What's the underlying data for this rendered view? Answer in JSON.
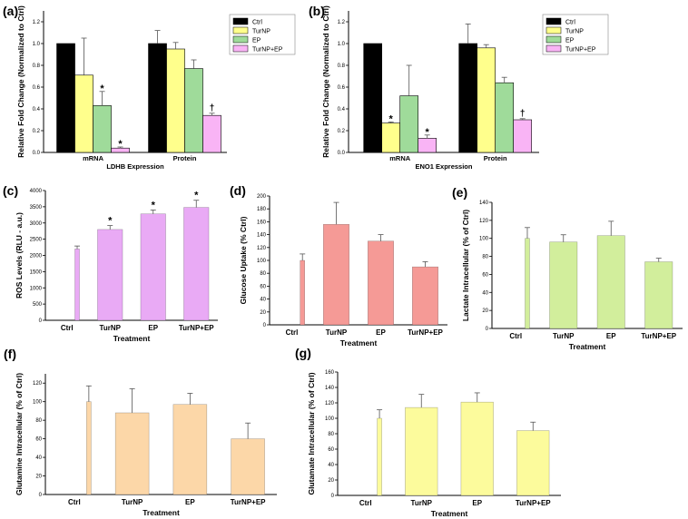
{
  "chart_data": [
    {
      "panel": "(a)",
      "type": "bar",
      "xlabel": "LDHB Expression",
      "ylabel": "Relative Fold Change (Normalized to Ctrl)",
      "ylim": [
        0,
        1.3
      ],
      "yticks": [
        "0.0",
        "0.2",
        "0.4",
        "0.6",
        "0.8",
        "1.0",
        "1.2"
      ],
      "categories": [
        "mRNA",
        "Protein"
      ],
      "legend": [
        "Ctrl",
        "TurNP",
        "EP",
        "TurNP+EP"
      ],
      "series": [
        {
          "name": "Ctrl",
          "color": "#000000",
          "values": [
            1.0,
            1.0
          ],
          "errors": [
            0,
            0.12
          ],
          "marks": [
            "",
            ""
          ]
        },
        {
          "name": "TurNP",
          "color": "#ffff8c",
          "values": [
            0.71,
            0.95
          ],
          "errors": [
            0.34,
            0.06
          ],
          "marks": [
            "",
            ""
          ]
        },
        {
          "name": "EP",
          "color": "#9fdb9a",
          "values": [
            0.43,
            0.77
          ],
          "errors": [
            0.13,
            0.08
          ],
          "marks": [
            "*",
            ""
          ]
        },
        {
          "name": "TurNP+EP",
          "color": "#f9b4f5",
          "values": [
            0.04,
            0.34
          ],
          "errors": [
            0.01,
            0.02
          ],
          "marks": [
            "*",
            "†"
          ]
        }
      ]
    },
    {
      "panel": "(b)",
      "type": "bar",
      "xlabel": "ENO1 Expression",
      "ylabel": "Relative Fold Change (Normalized to Ctrl)",
      "ylim": [
        0,
        1.3
      ],
      "yticks": [
        "0.0",
        "0.2",
        "0.4",
        "0.6",
        "0.8",
        "1.0",
        "1.2"
      ],
      "categories": [
        "mRNA",
        "Protein"
      ],
      "legend": [
        "Ctrl",
        "TurNP",
        "EP",
        "TurNP+EP"
      ],
      "series": [
        {
          "name": "Ctrl",
          "color": "#000000",
          "values": [
            1.0,
            1.0
          ],
          "errors": [
            0,
            0.18
          ],
          "marks": [
            "",
            ""
          ]
        },
        {
          "name": "TurNP",
          "color": "#ffff8c",
          "values": [
            0.27,
            0.96
          ],
          "errors": [
            0.01,
            0.03
          ],
          "marks": [
            "*",
            ""
          ]
        },
        {
          "name": "EP",
          "color": "#9fdb9a",
          "values": [
            0.52,
            0.64
          ],
          "errors": [
            0.28,
            0.05
          ],
          "marks": [
            "",
            ""
          ]
        },
        {
          "name": "TurNP+EP",
          "color": "#f9b4f5",
          "values": [
            0.13,
            0.3
          ],
          "errors": [
            0.03,
            0.01
          ],
          "marks": [
            "*",
            "†"
          ]
        }
      ]
    },
    {
      "panel": "(c)",
      "type": "bar",
      "xlabel": "Treatment",
      "ylabel": "ROS Levels (RLU - a.u.)",
      "ylim": [
        0,
        4000
      ],
      "yticks": [
        "0",
        "500",
        "1000",
        "1500",
        "2000",
        "2500",
        "3000",
        "3500",
        "4000"
      ],
      "categories": [
        "Ctrl",
        "TurNP",
        "EP",
        "TurNP+EP"
      ],
      "color": "#e9aaf5",
      "values": [
        2200,
        2800,
        3280,
        3480
      ],
      "errors": [
        90,
        120,
        120,
        220
      ],
      "marks": [
        "",
        "*",
        "*",
        "*"
      ]
    },
    {
      "panel": "(d)",
      "type": "bar",
      "xlabel": "Treatment",
      "ylabel": "Glucose Uptake (% Ctrl)",
      "ylim": [
        0,
        200
      ],
      "yticks": [
        "0",
        "20",
        "40",
        "60",
        "80",
        "100",
        "120",
        "140",
        "160",
        "180",
        "200"
      ],
      "categories": [
        "Ctrl",
        "TurNP",
        "EP",
        "TurNP+EP"
      ],
      "color": "#f59a96",
      "values": [
        100,
        156,
        130,
        90
      ],
      "errors": [
        10,
        34,
        10,
        8
      ],
      "marks": [
        "",
        "",
        "",
        ""
      ]
    },
    {
      "panel": "(e)",
      "type": "bar",
      "xlabel": "Treatment",
      "ylabel": "Lactate Intracellular (% of Ctrl)",
      "ylim": [
        0,
        140
      ],
      "yticks": [
        "0",
        "20",
        "40",
        "60",
        "80",
        "100",
        "120",
        "140"
      ],
      "categories": [
        "Ctrl",
        "TurNP",
        "EP",
        "TurNP+EP"
      ],
      "color": "#d2ee9c",
      "values": [
        100,
        96,
        103,
        74
      ],
      "errors": [
        12,
        8,
        16,
        4
      ],
      "marks": [
        "",
        "",
        "",
        ""
      ]
    },
    {
      "panel": "(f)",
      "type": "bar",
      "xlabel": "Treatment",
      "ylabel": "Glutamine Intracellular (% of Ctrl)",
      "ylim": [
        0,
        130
      ],
      "yticks": [
        "0",
        "20",
        "40",
        "60",
        "80",
        "100",
        "120"
      ],
      "categories": [
        "Ctrl",
        "TurNP",
        "EP",
        "TurNP+EP"
      ],
      "color": "#fcd7a8",
      "values": [
        100,
        88,
        97,
        60
      ],
      "errors": [
        17,
        26,
        12,
        17
      ],
      "marks": [
        "",
        "",
        "",
        ""
      ]
    },
    {
      "panel": "(g)",
      "type": "bar",
      "xlabel": "Treatment",
      "ylabel": "Glutamate Intracellular (% of Ctrl)",
      "ylim": [
        0,
        160
      ],
      "yticks": [
        "0",
        "20",
        "40",
        "60",
        "80",
        "100",
        "120",
        "140",
        "160"
      ],
      "categories": [
        "Ctrl",
        "TurNP",
        "EP",
        "TurNP+EP"
      ],
      "color": "#fcfb9c",
      "values": [
        100,
        114,
        121,
        84
      ],
      "errors": [
        11,
        17,
        12,
        11
      ],
      "marks": [
        "",
        "",
        "",
        ""
      ]
    }
  ]
}
